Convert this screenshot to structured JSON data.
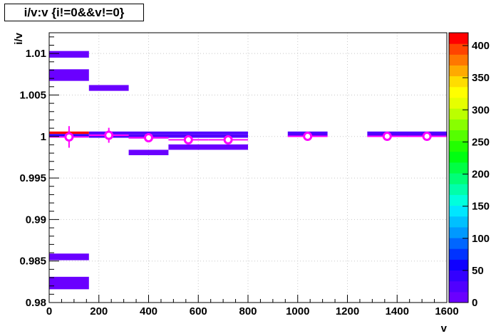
{
  "chart_data": {
    "type": "heatmap",
    "title": "i/v:v {i!=0&&v!=0}",
    "xlabel": "v",
    "ylabel": "i/v",
    "xlim": [
      0,
      1600
    ],
    "ylim": [
      0.98,
      1.0125
    ],
    "x_ticks": [
      "0",
      "200",
      "400",
      "600",
      "800",
      "1000",
      "1200",
      "1400",
      "1600"
    ],
    "y_ticks": [
      "0.98",
      "0.985",
      "0.99",
      "0.995",
      "1",
      "1.005",
      "1.01"
    ],
    "colorbar": {
      "range": [
        0,
        420
      ],
      "ticks": [
        "0",
        "50",
        "100",
        "150",
        "200",
        "250",
        "300",
        "350",
        "400"
      ],
      "palette": [
        "#6a00ff",
        "#5000ff",
        "#3300ff",
        "#0f00ff",
        "#0033ff",
        "#0066ff",
        "#0099ff",
        "#00c0ff",
        "#00e6ff",
        "#00ffdd",
        "#00ffaa",
        "#00ff77",
        "#00ff44",
        "#00ff11",
        "#22ff00",
        "#55ff00",
        "#88ff00",
        "#bbff00",
        "#e6ff00",
        "#ffff00",
        "#ffdd00",
        "#ffaa00",
        "#ff7700",
        "#ff4400",
        "#ff0000"
      ]
    },
    "cells": [
      {
        "x0": 0,
        "x1": 160,
        "y0": 1.0095,
        "y1": 1.0103,
        "value": 2
      },
      {
        "x0": 0,
        "x1": 160,
        "y0": 1.0067,
        "y1": 1.0081,
        "value": 3
      },
      {
        "x0": 160,
        "x1": 320,
        "y0": 1.0055,
        "y1": 1.0062,
        "value": 2
      },
      {
        "x0": 0,
        "x1": 160,
        "y0": 1.0003,
        "y1": 1.0006,
        "value": 420
      },
      {
        "x0": 0,
        "x1": 160,
        "y0": 0.99995,
        "y1": 1.0003,
        "value": 40
      },
      {
        "x0": 160,
        "x1": 800,
        "y0": 1.0003,
        "y1": 1.0006,
        "value": 25
      },
      {
        "x0": 160,
        "x1": 800,
        "y0": 0.99985,
        "y1": 1.0003,
        "value": 20
      },
      {
        "x0": 320,
        "x1": 480,
        "y0": 0.99975,
        "y1": 0.99995,
        "value": 5
      },
      {
        "x0": 320,
        "x1": 480,
        "y0": 0.99775,
        "y1": 0.9984,
        "value": 2
      },
      {
        "x0": 480,
        "x1": 800,
        "y0": 0.9984,
        "y1": 0.99905,
        "value": 3
      },
      {
        "x0": 960,
        "x1": 1120,
        "y0": 0.99995,
        "y1": 1.0006,
        "value": 20
      },
      {
        "x0": 1280,
        "x1": 1600,
        "y0": 0.99995,
        "y1": 1.0006,
        "value": 20
      },
      {
        "x0": 0,
        "x1": 160,
        "y0": 0.9851,
        "y1": 0.9859,
        "value": 2
      },
      {
        "x0": 0,
        "x1": 160,
        "y0": 0.9816,
        "y1": 0.9831,
        "value": 3
      }
    ],
    "profile": [
      {
        "x": 80,
        "y": 0.99995,
        "err": 0.0013
      },
      {
        "x": 240,
        "y": 1.00015,
        "err": 0.0009
      },
      {
        "x": 400,
        "y": 0.99985,
        "err": 0.0002
      },
      {
        "x": 560,
        "y": 0.9996,
        "err": 0.0002
      },
      {
        "x": 720,
        "y": 0.9996,
        "err": 0.0002
      },
      {
        "x": 1040,
        "y": 1.00002,
        "err": 0.0001
      },
      {
        "x": 1360,
        "y": 1.00002,
        "err": 0.0001
      },
      {
        "x": 1520,
        "y": 1.00002,
        "err": 0.0001
      }
    ],
    "profile_color": "#ff00ff",
    "grid": true
  }
}
